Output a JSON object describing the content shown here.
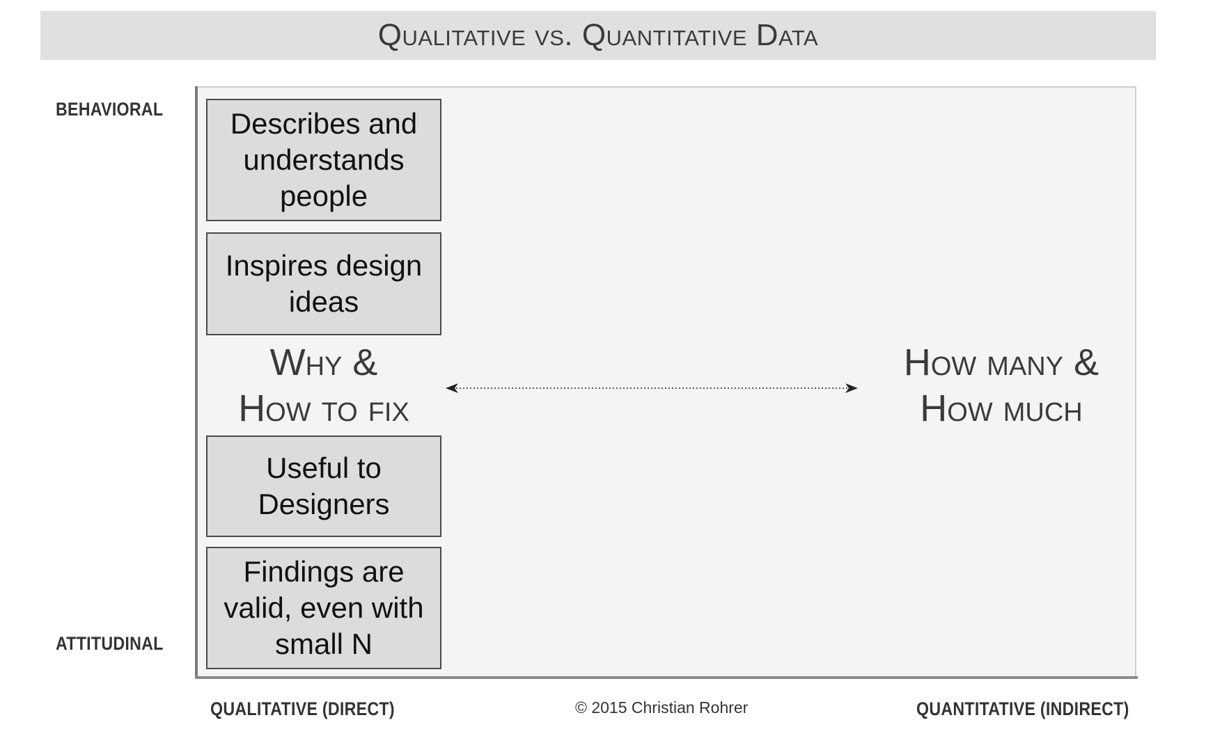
{
  "title": "Qualitative vs. Quantitative Data",
  "y_axis": {
    "top_label": "BEHAVIORAL",
    "bottom_label": "ATTITUDINAL"
  },
  "x_axis": {
    "left_label": "QUALITATIVE (DIRECT)",
    "right_label": "QUANTITATIVE (INDIRECT)"
  },
  "boxes": [
    "Describes and understands people",
    "Inspires design ideas",
    "Useful to Designers",
    "Findings are valid, even with small N"
  ],
  "qualitative_label": {
    "line1": "Why &",
    "line2": "How to fix"
  },
  "quantitative_label": {
    "line1": "How many &",
    "line2": "How much"
  },
  "copyright": "© 2015 Christian Rohrer",
  "colors": {
    "title_bar": "#e0e0e0",
    "panel": "#f4f4f4",
    "box_fill": "#dcdcdc",
    "box_border": "#4a4a4a",
    "label_text": "#3a3a3a"
  },
  "icons": {
    "arrow": "double-headed-dotted-arrow"
  }
}
